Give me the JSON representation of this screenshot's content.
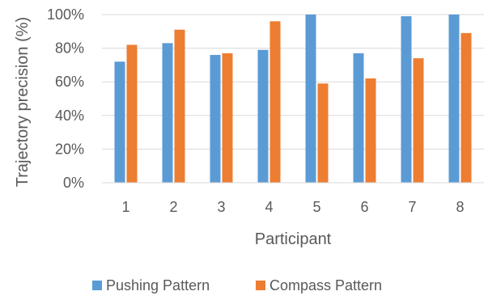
{
  "chart_data": {
    "type": "bar",
    "categories": [
      "1",
      "2",
      "3",
      "4",
      "5",
      "6",
      "7",
      "8"
    ],
    "series": [
      {
        "name": "Pushing Pattern",
        "color": "#5B9BD5",
        "values": [
          72,
          83,
          76,
          79,
          100,
          77,
          99,
          100
        ]
      },
      {
        "name": "Compass Pattern",
        "color": "#ED7D31",
        "values": [
          82,
          91,
          77,
          96,
          59,
          62,
          74,
          89
        ]
      }
    ],
    "xlabel": "Participant",
    "ylabel": "Trajectory precision (%)",
    "ylim": [
      0,
      100
    ],
    "yticks": [
      "0%",
      "20%",
      "40%",
      "60%",
      "80%",
      "100%"
    ],
    "grid": "horizontal",
    "legend_position": "bottom"
  }
}
